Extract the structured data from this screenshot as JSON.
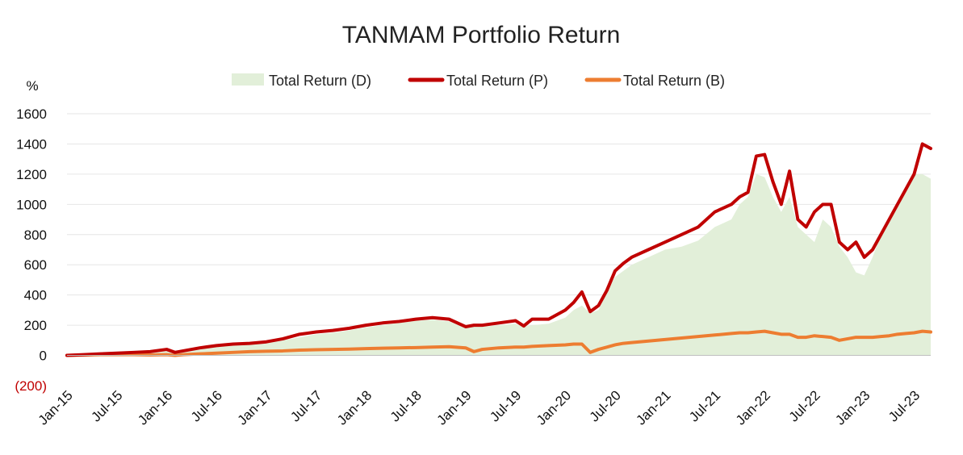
{
  "chart_data": {
    "type": "line",
    "title": "TANMAM Portfolio Return",
    "ylabel": "%",
    "xlabel": "",
    "ylim": [
      -200,
      1600
    ],
    "yticks": [
      1600,
      1400,
      1200,
      1000,
      800,
      600,
      400,
      200,
      0,
      -200
    ],
    "ytick_labels": [
      "1600",
      "1400",
      "1200",
      "1000",
      "800",
      "600",
      "400",
      "200",
      "0",
      "(200)"
    ],
    "grid": true,
    "legend": "top",
    "x_range": [
      0,
      104
    ],
    "categories": [
      "Jan-15",
      "Jul-15",
      "Jan-16",
      "Jul-16",
      "Jan-17",
      "Jul-17",
      "Jan-18",
      "Jul-18",
      "Jan-19",
      "Jul-19",
      "Jan-20",
      "Jul-20",
      "Jan-21",
      "Jul-21",
      "Jan-22",
      "Jul-22",
      "Jan-23",
      "Jul-23"
    ],
    "category_positions": [
      0,
      6,
      12,
      18,
      24,
      30,
      36,
      42,
      48,
      54,
      60,
      66,
      72,
      78,
      84,
      90,
      96,
      102
    ],
    "x": [
      0,
      2,
      4,
      6,
      8,
      10,
      12,
      13,
      14,
      16,
      18,
      20,
      22,
      24,
      26,
      28,
      30,
      32,
      34,
      36,
      38,
      40,
      42,
      44,
      46,
      48,
      49,
      50,
      52,
      54,
      55,
      56,
      58,
      60,
      61,
      62,
      63,
      64,
      65,
      66,
      67,
      68,
      70,
      72,
      74,
      76,
      78,
      80,
      81,
      82,
      83,
      84,
      85,
      86,
      87,
      88,
      89,
      90,
      91,
      92,
      93,
      94,
      95,
      96,
      97,
      98,
      99,
      100,
      101,
      102,
      103,
      104
    ],
    "series": [
      {
        "name": "Total Return (D)",
        "style": "area",
        "color": "#e2efd9",
        "values": [
          0,
          5,
          10,
          15,
          20,
          25,
          30,
          15,
          25,
          45,
          55,
          65,
          75,
          85,
          100,
          120,
          140,
          150,
          165,
          185,
          200,
          215,
          230,
          235,
          225,
          180,
          195,
          190,
          200,
          210,
          190,
          200,
          210,
          250,
          300,
          330,
          280,
          300,
          420,
          520,
          560,
          600,
          650,
          700,
          720,
          760,
          850,
          900,
          1000,
          1050,
          1200,
          1180,
          1050,
          950,
          1050,
          850,
          800,
          750,
          900,
          850,
          720,
          650,
          550,
          530,
          650,
          800,
          900,
          1000,
          1100,
          1200,
          1200,
          1170
        ]
      },
      {
        "name": "Total Return (P)",
        "style": "line",
        "color": "#c00000",
        "values": [
          0,
          5,
          10,
          15,
          20,
          25,
          40,
          20,
          30,
          50,
          65,
          75,
          80,
          90,
          110,
          140,
          155,
          165,
          180,
          200,
          215,
          225,
          240,
          250,
          240,
          190,
          200,
          200,
          215,
          230,
          195,
          240,
          240,
          300,
          350,
          420,
          290,
          330,
          430,
          560,
          610,
          650,
          700,
          750,
          800,
          850,
          950,
          1000,
          1050,
          1080,
          1320,
          1330,
          1150,
          1000,
          1220,
          900,
          850,
          950,
          1000,
          1000,
          750,
          700,
          750,
          650,
          700,
          800,
          900,
          1000,
          1100,
          1200,
          1400,
          1370
        ]
      },
      {
        "name": "Total Return (B)",
        "style": "line",
        "color": "#ed7d31",
        "values": [
          0,
          2,
          5,
          5,
          5,
          3,
          5,
          0,
          5,
          10,
          15,
          20,
          25,
          28,
          30,
          35,
          38,
          40,
          42,
          45,
          48,
          50,
          52,
          55,
          58,
          50,
          25,
          40,
          50,
          55,
          55,
          60,
          65,
          70,
          75,
          75,
          20,
          40,
          55,
          70,
          80,
          85,
          95,
          105,
          115,
          125,
          135,
          145,
          150,
          150,
          155,
          160,
          150,
          140,
          140,
          120,
          120,
          130,
          125,
          120,
          100,
          110,
          120,
          120,
          120,
          125,
          130,
          140,
          145,
          150,
          160,
          155
        ]
      }
    ]
  }
}
